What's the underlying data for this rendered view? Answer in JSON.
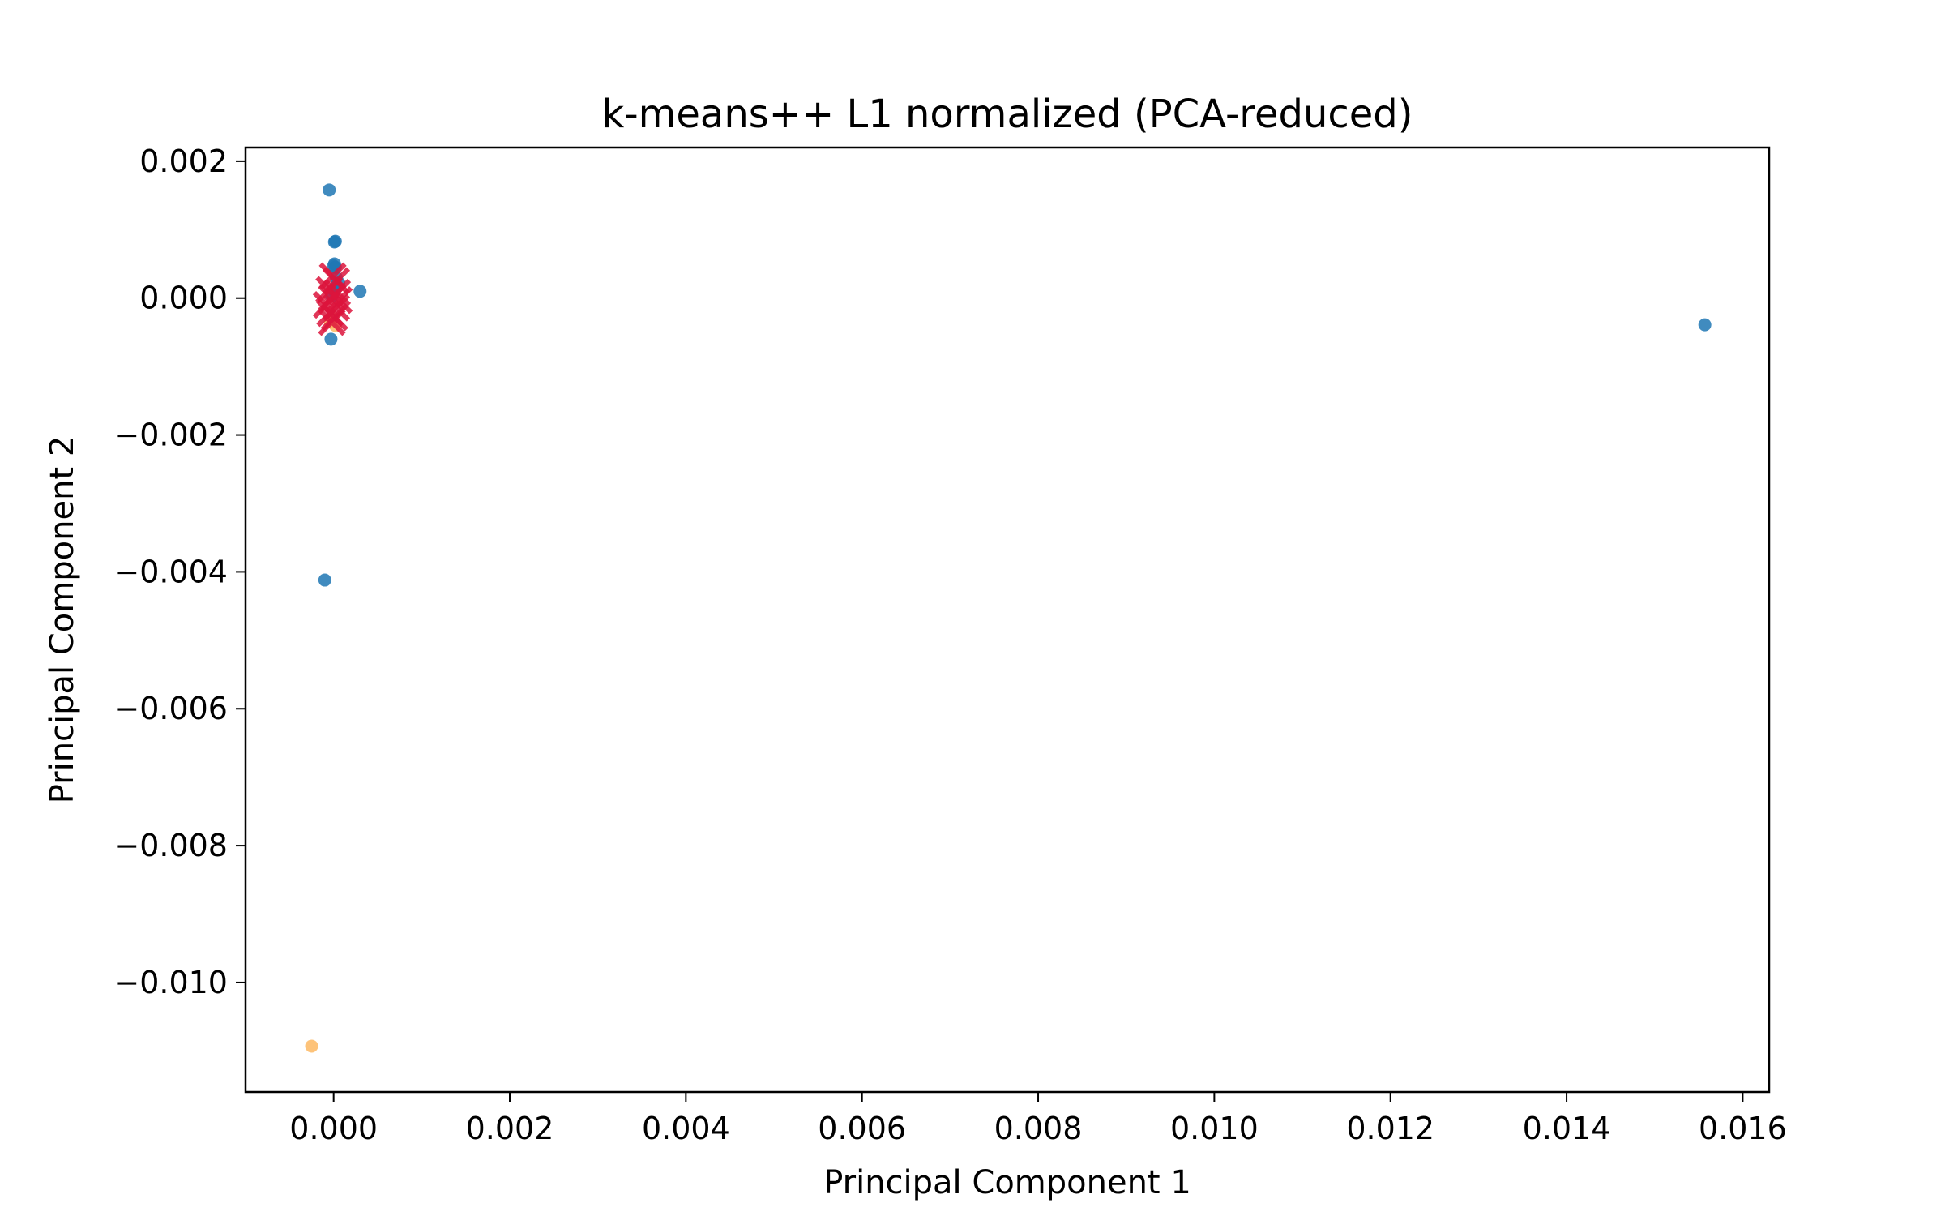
{
  "chart_data": {
    "type": "scatter",
    "title": "k-means++ L1 normalized (PCA-reduced)",
    "xlabel": "Principal Component 1",
    "ylabel": "Principal Component 2",
    "xlim": [
      -0.001,
      0.0163
    ],
    "ylim": [
      -0.0116,
      0.0022
    ],
    "xticks": [
      0.0,
      0.002,
      0.004,
      0.006,
      0.008,
      0.01,
      0.012,
      0.014,
      0.016
    ],
    "xtick_labels": [
      "0.000",
      "0.002",
      "0.004",
      "0.006",
      "0.008",
      "0.010",
      "0.012",
      "0.014",
      "0.016"
    ],
    "yticks": [
      0.002,
      0.0,
      -0.002,
      -0.004,
      -0.006,
      -0.008,
      -0.01
    ],
    "ytick_labels": [
      "0.002",
      "0.000",
      "−0.002",
      "−0.004",
      "−0.006",
      "−0.008",
      "−0.010"
    ],
    "grid": false,
    "legend": "none",
    "colors": {
      "cluster_0": "#1f77b4",
      "cluster_1": "#fdb863",
      "centroid": "#dc143c"
    },
    "series": [
      {
        "color": "#1f77b4",
        "marker": "circle",
        "points": [
          [
            -5e-05,
            0.00158
          ],
          [
            2e-05,
            0.00083
          ],
          [
            1e-05,
            0.00082
          ],
          [
            1e-05,
            0.0005
          ],
          [
            0.0,
            0.00047
          ],
          [
            2e-05,
            0.00045
          ],
          [
            3e-05,
            0.0003
          ],
          [
            6e-05,
            0.00022
          ],
          [
            3e-05,
            0.00018
          ],
          [
            0.0003,
            0.0001
          ],
          [
            1e-05,
            0.0001
          ],
          [
            -2e-05,
            3e-05
          ],
          [
            -3e-05,
            -0.0006
          ],
          [
            -0.0001,
            -0.00412
          ],
          [
            0.01557,
            -0.00039
          ]
        ]
      },
      {
        "color": "#fdb863",
        "marker": "circle",
        "points": [
          [
            -0.00025,
            -0.01093
          ],
          [
            -1e-05,
            -0.0003
          ],
          [
            2e-05,
            -0.0004
          ],
          [
            -4e-05,
            -0.00035
          ]
        ]
      },
      {
        "color": "#dc143c",
        "marker": "x",
        "points": [
          [
            -1e-05,
            0.00032
          ],
          [
            3e-05,
            0.00025
          ],
          [
            -5e-05,
            0.00012
          ],
          [
            4e-05,
            8e-05
          ],
          [
            -2e-05,
            0.0
          ],
          [
            6e-05,
            -3e-05
          ],
          [
            -8e-05,
            -0.0001
          ],
          [
            3e-05,
            -0.00014
          ],
          [
            -4e-05,
            -0.00022
          ],
          [
            1e-05,
            -0.00028
          ],
          [
            -2e-05,
            -0.00035
          ]
        ]
      }
    ]
  }
}
